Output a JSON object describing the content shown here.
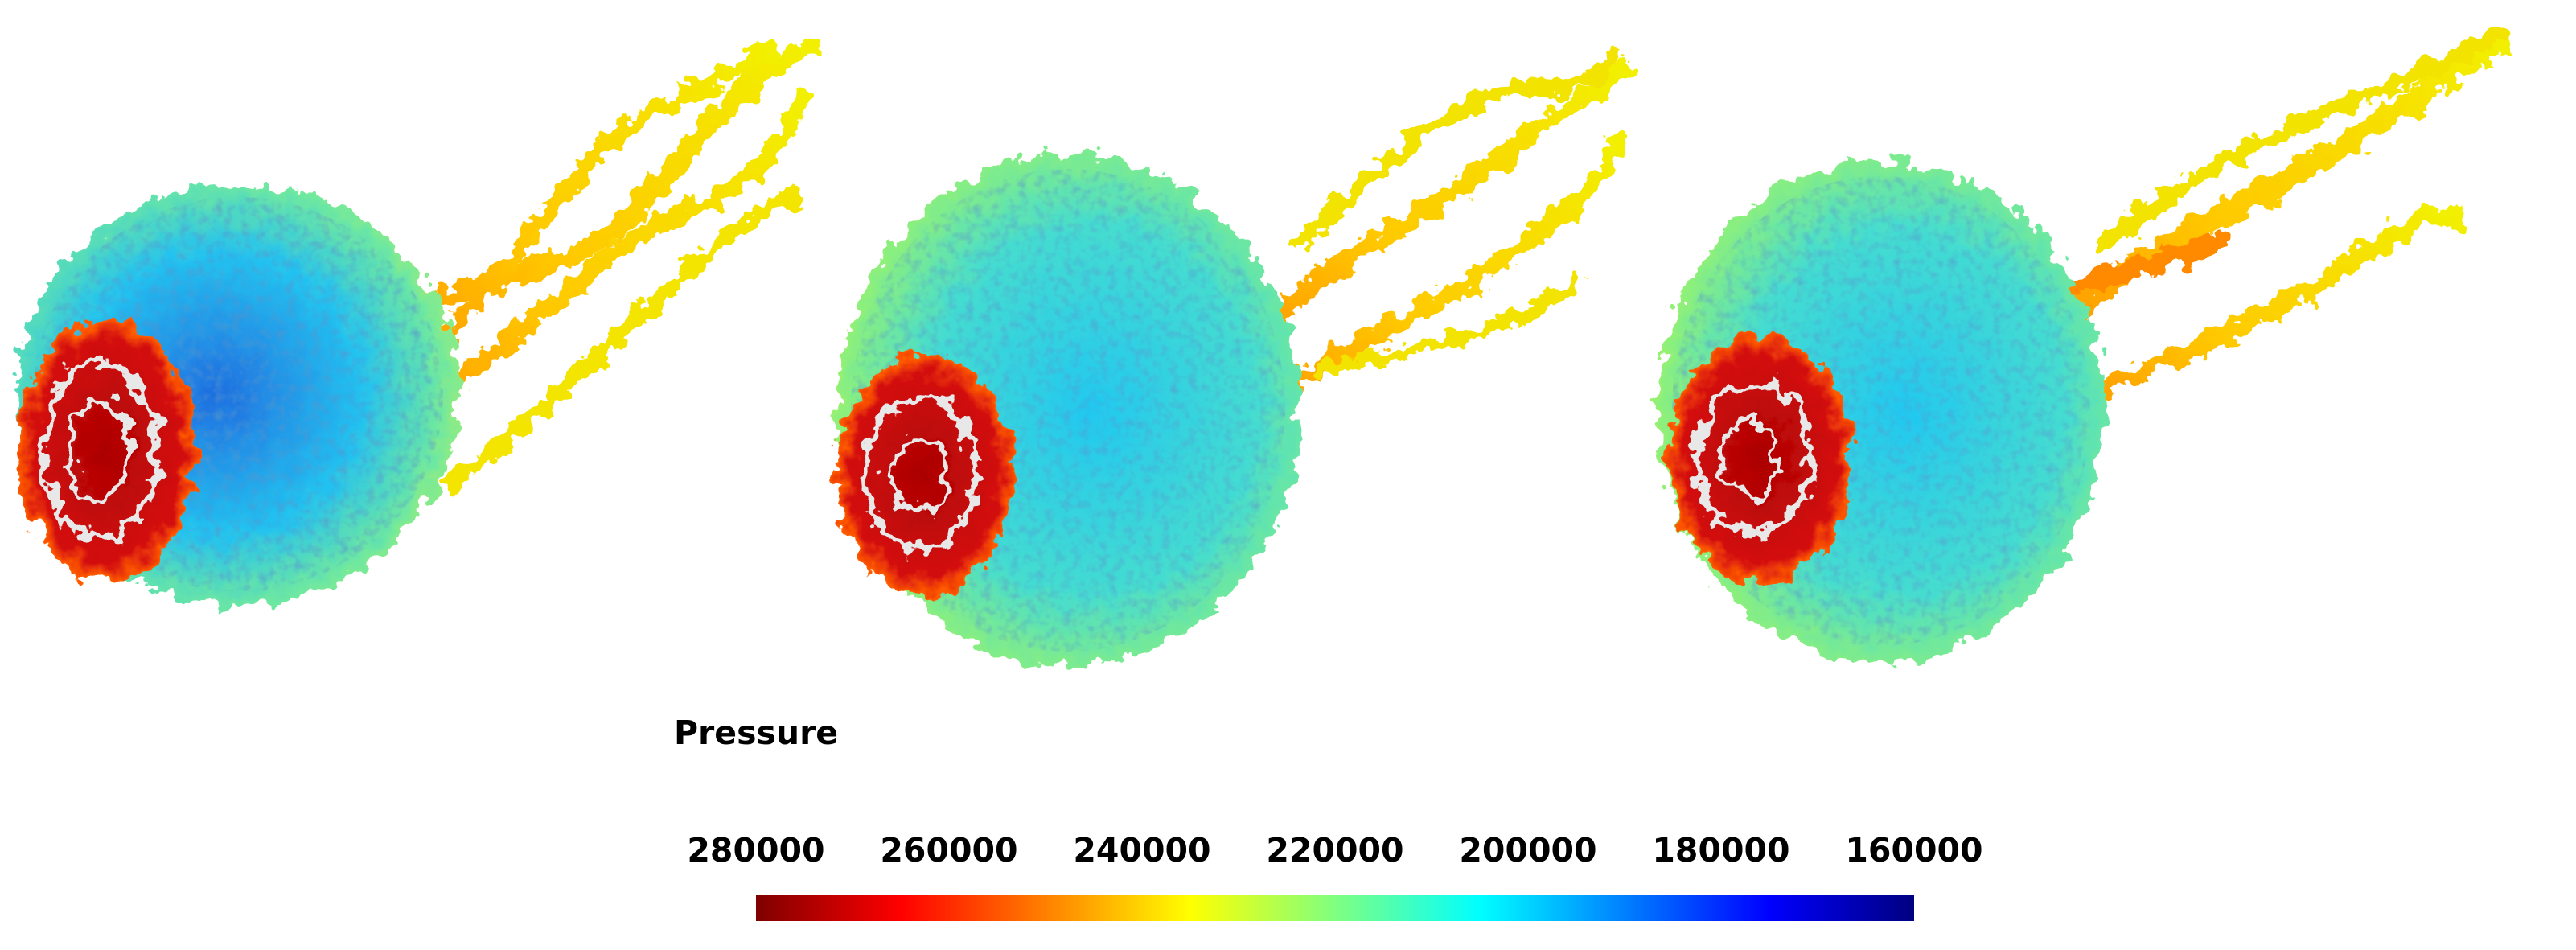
{
  "chart_data": {
    "type": "colorbar",
    "title": "Pressure",
    "xlim": [
      280000,
      160000
    ],
    "xticks": [
      280000,
      260000,
      240000,
      220000,
      200000,
      180000,
      160000
    ],
    "colors": [
      "#7f0000",
      "#ff0000",
      "#ff8000",
      "#ffff00",
      "#80ff80",
      "#00ffff",
      "#0080ff",
      "#0000ff",
      "#000080"
    ]
  }
}
